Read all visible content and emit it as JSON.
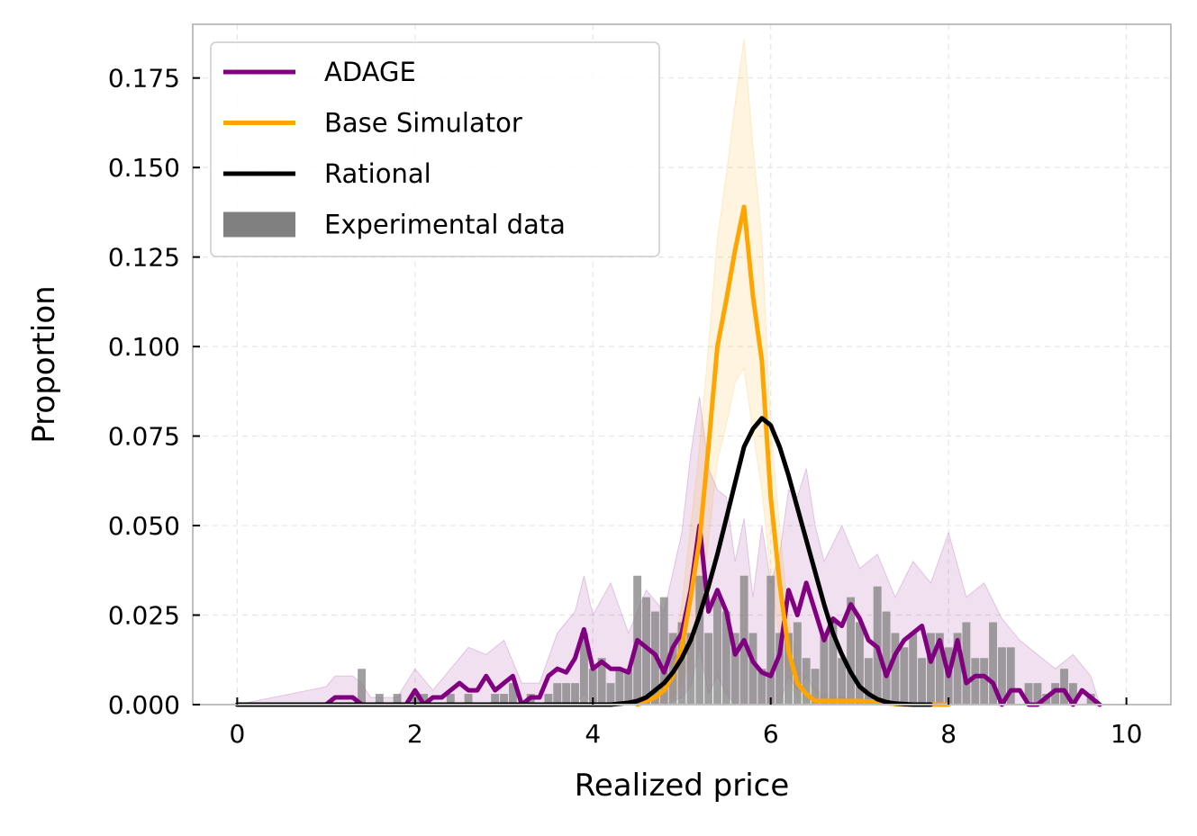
{
  "chart_data": {
    "type": "line",
    "xlabel": "Realized price",
    "ylabel": "Proportion",
    "xlim": [
      -0.5,
      10.5
    ],
    "ylim": [
      0.0,
      0.19
    ],
    "xticks": [
      "0",
      "2",
      "4",
      "6",
      "8",
      "10"
    ],
    "yticks": [
      "0.000",
      "0.025",
      "0.050",
      "0.075",
      "0.100",
      "0.125",
      "0.150",
      "0.175"
    ],
    "grid": true,
    "legend_position": "top-left",
    "series": [
      {
        "name": "ADAGE",
        "color": "#800080",
        "x": [
          0,
          1.0,
          1.1,
          1.2,
          1.3,
          1.4,
          1.5,
          1.6,
          1.7,
          1.8,
          1.9,
          2.0,
          2.1,
          2.2,
          2.3,
          2.4,
          2.5,
          2.6,
          2.7,
          2.8,
          2.9,
          3.0,
          3.1,
          3.2,
          3.3,
          3.4,
          3.5,
          3.6,
          3.7,
          3.8,
          3.9,
          4.0,
          4.1,
          4.2,
          4.3,
          4.4,
          4.5,
          4.6,
          4.7,
          4.8,
          4.9,
          5.0,
          5.1,
          5.2,
          5.3,
          5.4,
          5.5,
          5.6,
          5.7,
          5.8,
          5.9,
          6.0,
          6.1,
          6.2,
          6.3,
          6.4,
          6.5,
          6.6,
          6.7,
          6.8,
          6.9,
          7.0,
          7.1,
          7.2,
          7.3,
          7.4,
          7.5,
          7.6,
          7.7,
          7.8,
          7.9,
          8.0,
          8.1,
          8.2,
          8.3,
          8.4,
          8.5,
          8.6,
          8.7,
          8.8,
          8.9,
          9.0,
          9.1,
          9.2,
          9.3,
          9.4,
          9.5,
          9.6,
          9.7
        ],
        "values": [
          0,
          0,
          0.002,
          0.002,
          0.002,
          0,
          0,
          0,
          0,
          0,
          0,
          0.004,
          0,
          0.002,
          0.002,
          0.004,
          0.006,
          0.004,
          0.004,
          0.008,
          0.004,
          0.006,
          0.008,
          0,
          0.002,
          0.002,
          0.008,
          0.01,
          0.009,
          0.013,
          0.021,
          0.01,
          0.012,
          0.01,
          0.01,
          0.009,
          0.018,
          0.016,
          0.014,
          0.009,
          0.016,
          0.02,
          0.032,
          0.05,
          0.026,
          0.032,
          0.026,
          0.014,
          0.018,
          0.012,
          0.009,
          0.008,
          0.014,
          0.032,
          0.025,
          0.034,
          0.026,
          0.018,
          0.024,
          0.022,
          0.028,
          0.024,
          0.018,
          0.016,
          0.008,
          0.014,
          0.018,
          0.02,
          0.022,
          0.012,
          0.018,
          0.008,
          0.018,
          0.006,
          0.008,
          0.008,
          0.006,
          0,
          0.004,
          0.004,
          0,
          0,
          0.002,
          0.004,
          0.004,
          0,
          0.004,
          0.002,
          0
        ]
      },
      {
        "name": "Base Simulator",
        "color": "#ffa500",
        "x": [
          4.5,
          4.6,
          4.7,
          4.8,
          4.9,
          5.0,
          5.1,
          5.2,
          5.3,
          5.4,
          5.5,
          5.6,
          5.7,
          5.8,
          5.9,
          6.0,
          6.1,
          6.2,
          6.3,
          6.4,
          6.5,
          6.6,
          7.0,
          7.5,
          8.0
        ],
        "values": [
          0,
          0.001,
          0.002,
          0.004,
          0.008,
          0.016,
          0.03,
          0.046,
          0.072,
          0.1,
          0.113,
          0.127,
          0.139,
          0.114,
          0.096,
          0.058,
          0.034,
          0.015,
          0.006,
          0.003,
          0.001,
          0.001,
          0.001,
          0,
          0
        ]
      },
      {
        "name": "Rational",
        "color": "#000000",
        "x": [
          0,
          4.0,
          4.2,
          4.4,
          4.5,
          4.6,
          4.7,
          4.8,
          4.9,
          5.0,
          5.1,
          5.2,
          5.3,
          5.4,
          5.5,
          5.6,
          5.7,
          5.8,
          5.9,
          6.0,
          6.1,
          6.2,
          6.3,
          6.4,
          6.5,
          6.6,
          6.7,
          6.8,
          6.9,
          7.0,
          7.1,
          7.2,
          7.3,
          7.4,
          7.6,
          7.8
        ],
        "values": [
          0,
          0,
          0,
          0.0005,
          0.001,
          0.002,
          0.004,
          0.006,
          0.009,
          0.013,
          0.018,
          0.025,
          0.033,
          0.042,
          0.052,
          0.062,
          0.072,
          0.077,
          0.08,
          0.078,
          0.072,
          0.064,
          0.055,
          0.046,
          0.037,
          0.028,
          0.02,
          0.014,
          0.009,
          0.005,
          0.003,
          0.0015,
          0.0007,
          0.0003,
          0,
          0
        ]
      },
      {
        "name": "Experimental data",
        "color": "#808080",
        "type": "bar",
        "bar_width": 0.1,
        "x": [
          1.4,
          1.6,
          1.8,
          2.0,
          2.1,
          2.4,
          2.6,
          2.9,
          3.0,
          3.1,
          3.3,
          3.5,
          3.6,
          3.7,
          3.8,
          3.9,
          4.0,
          4.1,
          4.2,
          4.3,
          4.4,
          4.5,
          4.6,
          4.7,
          4.8,
          4.9,
          5.0,
          5.1,
          5.2,
          5.3,
          5.4,
          5.5,
          5.6,
          5.7,
          5.8,
          5.9,
          6.0,
          6.1,
          6.2,
          6.3,
          6.4,
          6.5,
          6.6,
          6.7,
          6.8,
          6.9,
          7.0,
          7.1,
          7.2,
          7.3,
          7.4,
          7.5,
          7.6,
          7.7,
          7.8,
          7.9,
          8.0,
          8.1,
          8.2,
          8.3,
          8.4,
          8.5,
          8.6,
          8.7,
          8.9,
          9.0,
          9.1,
          9.2,
          9.3,
          9.4,
          9.6
        ],
        "values": [
          0.01,
          0.003,
          0.003,
          0.003,
          0.003,
          0.003,
          0.003,
          0.003,
          0.003,
          0.006,
          0.003,
          0.003,
          0.006,
          0.006,
          0.006,
          0.02,
          0.01,
          0.013,
          0.006,
          0.01,
          0.01,
          0.036,
          0.03,
          0.026,
          0.03,
          0.02,
          0.023,
          0.02,
          0.036,
          0.02,
          0.03,
          0.026,
          0.02,
          0.036,
          0.02,
          0.01,
          0.036,
          0.02,
          0.02,
          0.023,
          0.013,
          0.01,
          0.02,
          0.023,
          0.013,
          0.03,
          0.023,
          0.013,
          0.033,
          0.026,
          0.02,
          0.016,
          0.02,
          0.013,
          0.02,
          0.02,
          0.016,
          0.02,
          0.023,
          0.013,
          0.013,
          0.023,
          0.016,
          0.016,
          0.006,
          0.006,
          0.003,
          0.006,
          0.01,
          0.006,
          0.003
        ]
      }
    ],
    "bands": [
      {
        "series": "ADAGE",
        "color": "#800080",
        "x": [
          0,
          1.0,
          1.1,
          1.2,
          1.3,
          1.4,
          1.5,
          1.6,
          1.8,
          2.0,
          2.2,
          2.4,
          2.6,
          2.8,
          3.0,
          3.2,
          3.4,
          3.6,
          3.8,
          3.9,
          4.0,
          4.2,
          4.4,
          4.6,
          4.8,
          5.0,
          5.1,
          5.2,
          5.3,
          5.4,
          5.5,
          5.6,
          5.7,
          5.8,
          5.9,
          6.0,
          6.1,
          6.2,
          6.3,
          6.4,
          6.5,
          6.6,
          6.8,
          7.0,
          7.2,
          7.4,
          7.6,
          7.8,
          8.0,
          8.2,
          8.4,
          8.6,
          8.8,
          9.0,
          9.2,
          9.4,
          9.6,
          9.7
        ],
        "upper": [
          0,
          0.005,
          0.008,
          0.008,
          0.008,
          0.006,
          0.002,
          0.002,
          0.002,
          0.01,
          0.004,
          0.01,
          0.016,
          0.014,
          0.018,
          0.006,
          0.006,
          0.02,
          0.026,
          0.036,
          0.025,
          0.034,
          0.02,
          0.032,
          0.026,
          0.048,
          0.07,
          0.086,
          0.066,
          0.06,
          0.058,
          0.04,
          0.052,
          0.03,
          0.05,
          0.034,
          0.042,
          0.06,
          0.058,
          0.066,
          0.05,
          0.04,
          0.05,
          0.038,
          0.042,
          0.03,
          0.04,
          0.034,
          0.048,
          0.03,
          0.034,
          0.024,
          0.018,
          0.014,
          0.01,
          0.014,
          0.008,
          0
        ],
        "lower": [
          0,
          0,
          0,
          0,
          0,
          0,
          0,
          0,
          0,
          0,
          0,
          0,
          0,
          0,
          0,
          0,
          0,
          0,
          0,
          0.003,
          0,
          0,
          0,
          0,
          0,
          0.002,
          0.005,
          0.016,
          0.003,
          0.008,
          0.003,
          0,
          0,
          0,
          0,
          0,
          0,
          0.008,
          0.004,
          0.008,
          0.004,
          0,
          0.002,
          0,
          0,
          0,
          0,
          0,
          0,
          0,
          0,
          0,
          0,
          0,
          0,
          0,
          0,
          0
        ]
      },
      {
        "series": "Base Simulator",
        "color": "#ffa500",
        "x": [
          4.5,
          4.7,
          4.9,
          5.0,
          5.1,
          5.2,
          5.3,
          5.4,
          5.5,
          5.6,
          5.7,
          5.8,
          5.9,
          6.0,
          6.1,
          6.2,
          6.3,
          6.5,
          6.8,
          7.2
        ],
        "upper": [
          0,
          0.004,
          0.014,
          0.028,
          0.05,
          0.072,
          0.1,
          0.13,
          0.148,
          0.168,
          0.186,
          0.156,
          0.13,
          0.078,
          0.05,
          0.024,
          0.01,
          0.004,
          0.002,
          0
        ],
        "lower": [
          0,
          0,
          0.002,
          0.006,
          0.012,
          0.024,
          0.046,
          0.068,
          0.078,
          0.09,
          0.094,
          0.076,
          0.06,
          0.036,
          0.018,
          0.006,
          0.002,
          0,
          0,
          0
        ]
      }
    ]
  }
}
